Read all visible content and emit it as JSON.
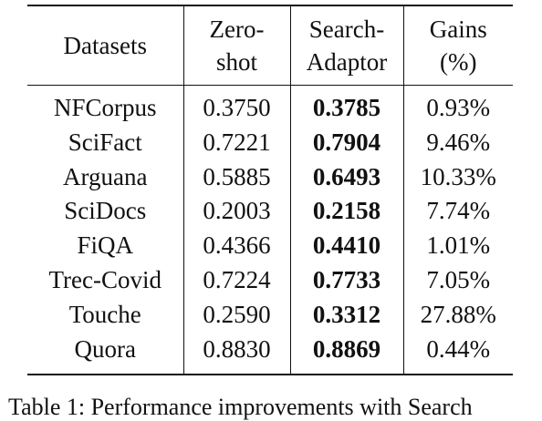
{
  "table": {
    "headers": [
      [
        "Datasets"
      ],
      [
        "Zero-",
        "shot"
      ],
      [
        "Search-",
        "Adaptor"
      ],
      [
        "Gains",
        "(%)"
      ]
    ],
    "rows": [
      {
        "dataset": "NFCorpus",
        "zero_shot": "0.3750",
        "search_adaptor": "0.3785",
        "gains": "0.93%"
      },
      {
        "dataset": "SciFact",
        "zero_shot": "0.7221",
        "search_adaptor": "0.7904",
        "gains": "9.46%"
      },
      {
        "dataset": "Arguana",
        "zero_shot": "0.5885",
        "search_adaptor": "0.6493",
        "gains": "10.33%"
      },
      {
        "dataset": "SciDocs",
        "zero_shot": "0.2003",
        "search_adaptor": "0.2158",
        "gains": "7.74%"
      },
      {
        "dataset": "FiQA",
        "zero_shot": "0.4366",
        "search_adaptor": "0.4410",
        "gains": "1.01%"
      },
      {
        "dataset": "Trec-Covid",
        "zero_shot": "0.7224",
        "search_adaptor": "0.7733",
        "gains": "7.05%"
      },
      {
        "dataset": "Touche",
        "zero_shot": "0.2590",
        "search_adaptor": "0.3312",
        "gains": "27.88%"
      },
      {
        "dataset": "Quora",
        "zero_shot": "0.8830",
        "search_adaptor": "0.8869",
        "gains": "0.44%"
      }
    ]
  },
  "caption": "Table 1: Performance improvements with Search"
}
